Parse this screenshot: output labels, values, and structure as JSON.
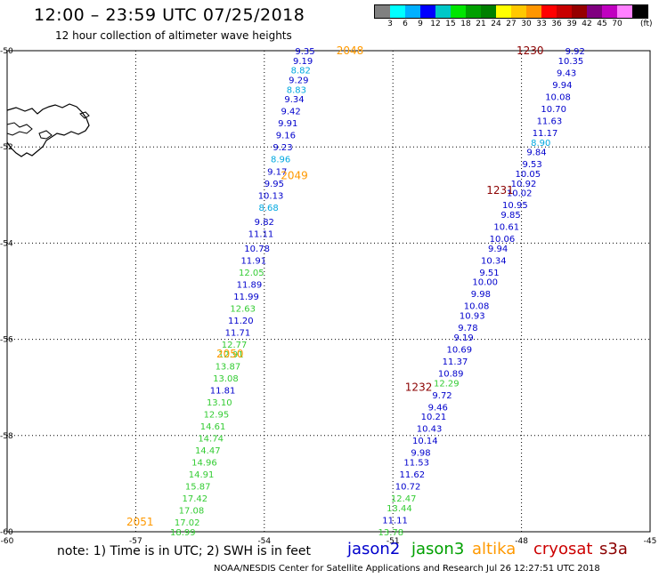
{
  "title": "12:00 – 23:59 UTC 07/25/2018",
  "subtitle": "12 hour collection of altimeter wave heights",
  "colorbar": {
    "colors": [
      "#808080",
      "#00ffff",
      "#00b0ff",
      "#0000ff",
      "#00c8c8",
      "#00e600",
      "#00a000",
      "#008000",
      "#ffff00",
      "#ffc800",
      "#ff9600",
      "#ff0000",
      "#c80000",
      "#960000",
      "#800080",
      "#c000c0",
      "#ff80ff",
      "#000000"
    ],
    "labels": [
      "3",
      "6",
      "9",
      "12",
      "15",
      "18",
      "21",
      "24",
      "27",
      "30",
      "33",
      "36",
      "39",
      "42",
      "45",
      "70"
    ],
    "unit": "(ft)"
  },
  "axes": {
    "lon_min": -60,
    "lon_max": -45,
    "lat_min": -60,
    "lat_max": -50,
    "x_ticks": [
      "-60",
      "-57",
      "-54",
      "-51",
      "-48",
      "-45"
    ],
    "y_ticks": [
      "-50",
      "-52",
      "-54",
      "-56",
      "-58",
      "-60"
    ]
  },
  "note": "note: 1) Time is in UTC; 2) SWH is in feet",
  "legend": [
    {
      "name": "jason2",
      "color": "#0000cc"
    },
    {
      "name": "jason3",
      "color": "#00a000"
    },
    {
      "name": "altika",
      "color": "#ff9900"
    },
    {
      "name": "cryosat",
      "color": "#cc0000"
    },
    {
      "name": "s3a",
      "color": "#8b0000"
    }
  ],
  "credit": "NOAA/NESDIS Center for Satellite Applications and Research   Jul 26 12:27:51 UTC 2018",
  "colors": {
    "blue": "#0000cc",
    "cyan": "#00a8e0",
    "green": "#33cc33",
    "orange": "#ff9900",
    "darkred": "#8b0000"
  },
  "track_labels": [
    {
      "text": "2048",
      "lon": -52.0,
      "lat": -50.0,
      "color": "orange"
    },
    {
      "text": "2049",
      "lon": -53.3,
      "lat": -52.6,
      "color": "orange"
    },
    {
      "text": "2050",
      "lon": -54.8,
      "lat": -56.3,
      "color": "orange"
    },
    {
      "text": "2051",
      "lon": -56.9,
      "lat": -59.8,
      "color": "orange"
    },
    {
      "text": "1230",
      "lon": -47.8,
      "lat": -50.0,
      "color": "darkred"
    },
    {
      "text": "1231",
      "lon": -48.5,
      "lat": -52.9,
      "color": "darkred"
    },
    {
      "text": "1232",
      "lon": -50.4,
      "lat": -57.0,
      "color": "darkred"
    }
  ],
  "swh_tracks": [
    {
      "points": [
        {
          "v": "9.35",
          "lon": -53.05,
          "lat": -50.0,
          "c": "blue"
        },
        {
          "v": "9.19",
          "lon": -53.1,
          "lat": -50.2,
          "c": "blue"
        },
        {
          "v": "8.82",
          "lon": -53.15,
          "lat": -50.4,
          "c": "cyan"
        },
        {
          "v": "9.29",
          "lon": -53.2,
          "lat": -50.6,
          "c": "blue"
        },
        {
          "v": "8.83",
          "lon": -53.25,
          "lat": -50.8,
          "c": "cyan"
        },
        {
          "v": "9.34",
          "lon": -53.3,
          "lat": -51.0,
          "c": "blue"
        },
        {
          "v": "9.42",
          "lon": -53.38,
          "lat": -51.25,
          "c": "blue"
        },
        {
          "v": "9.91",
          "lon": -53.45,
          "lat": -51.5,
          "c": "blue"
        },
        {
          "v": "9.16",
          "lon": -53.5,
          "lat": -51.75,
          "c": "blue"
        },
        {
          "v": "9.23",
          "lon": -53.57,
          "lat": -52.0,
          "c": "blue"
        },
        {
          "v": "8.96",
          "lon": -53.62,
          "lat": -52.25,
          "c": "cyan"
        },
        {
          "v": "9.17",
          "lon": -53.7,
          "lat": -52.5,
          "c": "blue"
        },
        {
          "v": "9.95",
          "lon": -53.77,
          "lat": -52.75,
          "c": "blue"
        },
        {
          "v": "10.13",
          "lon": -53.85,
          "lat": -53.0,
          "c": "blue"
        },
        {
          "v": "8.68",
          "lon": -53.9,
          "lat": -53.25,
          "c": "cyan"
        },
        {
          "v": "9.82",
          "lon": -54.0,
          "lat": -53.55,
          "c": "blue"
        },
        {
          "v": "11.11",
          "lon": -54.08,
          "lat": -53.8,
          "c": "blue"
        },
        {
          "v": "10.78",
          "lon": -54.17,
          "lat": -54.1,
          "c": "blue"
        },
        {
          "v": "11.91",
          "lon": -54.25,
          "lat": -54.35,
          "c": "blue"
        },
        {
          "v": "12.05",
          "lon": -54.3,
          "lat": -54.6,
          "c": "green"
        },
        {
          "v": "11.89",
          "lon": -54.35,
          "lat": -54.85,
          "c": "blue"
        },
        {
          "v": "11.99",
          "lon": -54.42,
          "lat": -55.1,
          "c": "blue"
        },
        {
          "v": "12.63",
          "lon": -54.5,
          "lat": -55.35,
          "c": "green"
        },
        {
          "v": "11.20",
          "lon": -54.55,
          "lat": -55.6,
          "c": "blue"
        },
        {
          "v": "11.71",
          "lon": -54.62,
          "lat": -55.85,
          "c": "blue"
        },
        {
          "v": "12.77",
          "lon": -54.7,
          "lat": -56.1,
          "c": "green"
        },
        {
          "v": "12.91",
          "lon": -54.78,
          "lat": -56.3,
          "c": "green"
        },
        {
          "v": "13.87",
          "lon": -54.85,
          "lat": -56.55,
          "c": "green"
        },
        {
          "v": "13.08",
          "lon": -54.9,
          "lat": -56.8,
          "c": "green"
        },
        {
          "v": "11.81",
          "lon": -54.97,
          "lat": -57.05,
          "c": "blue"
        },
        {
          "v": "13.10",
          "lon": -55.05,
          "lat": -57.3,
          "c": "green"
        },
        {
          "v": "12.95",
          "lon": -55.12,
          "lat": -57.55,
          "c": "green"
        },
        {
          "v": "14.61",
          "lon": -55.2,
          "lat": -57.8,
          "c": "green"
        },
        {
          "v": "14.74",
          "lon": -55.25,
          "lat": -58.05,
          "c": "green"
        },
        {
          "v": "14.47",
          "lon": -55.32,
          "lat": -58.3,
          "c": "green"
        },
        {
          "v": "14.96",
          "lon": -55.4,
          "lat": -58.55,
          "c": "green"
        },
        {
          "v": "14.91",
          "lon": -55.47,
          "lat": -58.8,
          "c": "green"
        },
        {
          "v": "15.87",
          "lon": -55.55,
          "lat": -59.05,
          "c": "green"
        },
        {
          "v": "17.42",
          "lon": -55.62,
          "lat": -59.3,
          "c": "green"
        },
        {
          "v": "17.08",
          "lon": -55.7,
          "lat": -59.55,
          "c": "green"
        },
        {
          "v": "17.02",
          "lon": -55.8,
          "lat": -59.8,
          "c": "green"
        },
        {
          "v": "18.99",
          "lon": -55.9,
          "lat": -60.0,
          "c": "green"
        }
      ]
    },
    {
      "points": [
        {
          "v": "9.92",
          "lon": -46.75,
          "lat": -50.0,
          "c": "blue"
        },
        {
          "v": "10.35",
          "lon": -46.85,
          "lat": -50.2,
          "c": "blue"
        },
        {
          "v": "9.43",
          "lon": -46.95,
          "lat": -50.45,
          "c": "blue"
        },
        {
          "v": "9.94",
          "lon": -47.05,
          "lat": -50.7,
          "c": "blue"
        },
        {
          "v": "10.08",
          "lon": -47.15,
          "lat": -50.95,
          "c": "blue"
        },
        {
          "v": "10.70",
          "lon": -47.25,
          "lat": -51.2,
          "c": "blue"
        },
        {
          "v": "11.63",
          "lon": -47.35,
          "lat": -51.45,
          "c": "blue"
        },
        {
          "v": "11.17",
          "lon": -47.45,
          "lat": -51.7,
          "c": "blue"
        },
        {
          "v": "8.90",
          "lon": -47.55,
          "lat": -51.9,
          "c": "cyan"
        },
        {
          "v": "9.84",
          "lon": -47.65,
          "lat": -52.1,
          "c": "blue"
        },
        {
          "v": "9.53",
          "lon": -47.75,
          "lat": -52.35,
          "c": "blue"
        },
        {
          "v": "10.05",
          "lon": -47.85,
          "lat": -52.55,
          "c": "blue"
        },
        {
          "v": "10.92",
          "lon": -47.95,
          "lat": -52.75,
          "c": "blue"
        },
        {
          "v": "10.02",
          "lon": -48.05,
          "lat": -52.95,
          "c": "blue"
        },
        {
          "v": "10.95",
          "lon": -48.15,
          "lat": -53.2,
          "c": "blue"
        },
        {
          "v": "9.85",
          "lon": -48.25,
          "lat": -53.4,
          "c": "blue"
        },
        {
          "v": "10.61",
          "lon": -48.35,
          "lat": -53.65,
          "c": "blue"
        },
        {
          "v": "10.06",
          "lon": -48.45,
          "lat": -53.9,
          "c": "blue"
        },
        {
          "v": "9.94",
          "lon": -48.55,
          "lat": -54.1,
          "c": "blue"
        },
        {
          "v": "10.34",
          "lon": -48.65,
          "lat": -54.35,
          "c": "blue"
        },
        {
          "v": "9.51",
          "lon": -48.75,
          "lat": -54.6,
          "c": "blue"
        },
        {
          "v": "10.00",
          "lon": -48.85,
          "lat": -54.8,
          "c": "blue"
        },
        {
          "v": "9.98",
          "lon": -48.95,
          "lat": -55.05,
          "c": "blue"
        },
        {
          "v": "10.08",
          "lon": -49.05,
          "lat": -55.3,
          "c": "blue"
        },
        {
          "v": "10.93",
          "lon": -49.15,
          "lat": -55.5,
          "c": "blue"
        },
        {
          "v": "9.78",
          "lon": -49.25,
          "lat": -55.75,
          "c": "blue"
        },
        {
          "v": "9.19",
          "lon": -49.35,
          "lat": -55.95,
          "c": "blue"
        },
        {
          "v": "10.69",
          "lon": -49.45,
          "lat": -56.2,
          "c": "blue"
        },
        {
          "v": "11.37",
          "lon": -49.55,
          "lat": -56.45,
          "c": "blue"
        },
        {
          "v": "10.89",
          "lon": -49.65,
          "lat": -56.7,
          "c": "blue"
        },
        {
          "v": "12.29",
          "lon": -49.75,
          "lat": -56.9,
          "c": "green"
        },
        {
          "v": "9.72",
          "lon": -49.85,
          "lat": -57.15,
          "c": "blue"
        },
        {
          "v": "9.46",
          "lon": -49.95,
          "lat": -57.4,
          "c": "blue"
        },
        {
          "v": "10.21",
          "lon": -50.05,
          "lat": -57.6,
          "c": "blue"
        },
        {
          "v": "10.43",
          "lon": -50.15,
          "lat": -57.85,
          "c": "blue"
        },
        {
          "v": "10.14",
          "lon": -50.25,
          "lat": -58.1,
          "c": "blue"
        },
        {
          "v": "9.98",
          "lon": -50.35,
          "lat": -58.35,
          "c": "blue"
        },
        {
          "v": "11.53",
          "lon": -50.45,
          "lat": -58.55,
          "c": "blue"
        },
        {
          "v": "11.62",
          "lon": -50.55,
          "lat": -58.8,
          "c": "blue"
        },
        {
          "v": "10.72",
          "lon": -50.65,
          "lat": -59.05,
          "c": "blue"
        },
        {
          "v": "12.47",
          "lon": -50.75,
          "lat": -59.3,
          "c": "green"
        },
        {
          "v": "13.44",
          "lon": -50.85,
          "lat": -59.5,
          "c": "green"
        },
        {
          "v": "11.11",
          "lon": -50.95,
          "lat": -59.75,
          "c": "blue"
        },
        {
          "v": "13.78",
          "lon": -51.05,
          "lat": -60.0,
          "c": "green"
        }
      ]
    }
  ]
}
